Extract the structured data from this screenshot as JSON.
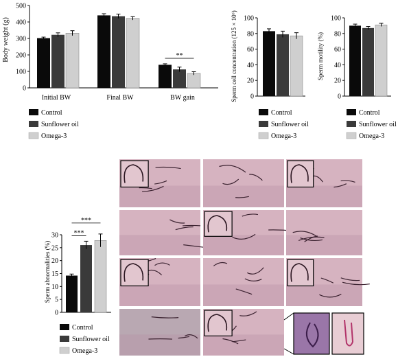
{
  "colors": {
    "control": "#0a0a0a",
    "sunflower": "#3a3a3a",
    "omega3": "#cfcfcf",
    "micrograph_bg": "#d6b3c0",
    "micrograph_dark": "#b88fa3"
  },
  "legend": [
    "Control",
    "Sunflower oil",
    "Omega-3"
  ],
  "chart_data": [
    {
      "type": "bar",
      "categories": [
        "Initial BW",
        "Final BW",
        "BW gain"
      ],
      "series": [
        {
          "name": "Control",
          "values": [
            302,
            440,
            140
          ],
          "errors": [
            6,
            10,
            6
          ]
        },
        {
          "name": "Sunflower oil",
          "values": [
            322,
            435,
            112
          ],
          "errors": [
            12,
            13,
            14
          ]
        },
        {
          "name": "Omega-3",
          "values": [
            332,
            422,
            88
          ],
          "errors": [
            15,
            10,
            10
          ]
        }
      ],
      "ylabel": "Body weight (g)",
      "ylim": [
        0,
        500
      ],
      "yticks": [
        0,
        100,
        200,
        300,
        400,
        500
      ],
      "annotations": [
        {
          "text": "**",
          "between": [
            "Control",
            "Omega-3"
          ],
          "category": "BW gain"
        }
      ]
    },
    {
      "type": "bar",
      "categories": [
        ""
      ],
      "series": [
        {
          "name": "Control",
          "values": [
            83
          ],
          "errors": [
            3
          ]
        },
        {
          "name": "Sunflower oil",
          "values": [
            79
          ],
          "errors": [
            4
          ]
        },
        {
          "name": "Omega-3",
          "values": [
            77
          ],
          "errors": [
            4
          ]
        }
      ],
      "ylabel": "Sperm cell concentration (125 × 10⁶)",
      "ylim": [
        0,
        100
      ],
      "yticks": [
        0,
        20,
        40,
        60,
        80,
        100
      ]
    },
    {
      "type": "bar",
      "categories": [
        ""
      ],
      "series": [
        {
          "name": "Control",
          "values": [
            90
          ],
          "errors": [
            2
          ]
        },
        {
          "name": "Sunflower oil",
          "values": [
            87
          ],
          "errors": [
            2
          ]
        },
        {
          "name": "Omega-3",
          "values": [
            91
          ],
          "errors": [
            2
          ]
        }
      ],
      "ylabel": "Sperm motility (%)",
      "ylim": [
        0,
        100
      ],
      "yticks": [
        0,
        20,
        40,
        60,
        80,
        100
      ]
    },
    {
      "type": "bar",
      "categories": [
        ""
      ],
      "series": [
        {
          "name": "Control",
          "values": [
            14.2
          ],
          "errors": [
            0.6
          ]
        },
        {
          "name": "Sunflower oil",
          "values": [
            26
          ],
          "errors": [
            1.5
          ]
        },
        {
          "name": "Omega-3",
          "values": [
            27.8
          ],
          "errors": [
            2.5
          ]
        }
      ],
      "ylabel": "Sperm abnormalities (%)",
      "ylim": [
        0,
        30
      ],
      "yticks": [
        0,
        5,
        10,
        15,
        20,
        25,
        30
      ],
      "annotations": [
        {
          "text": "***",
          "between": [
            "Control",
            "Sunflower oil"
          ]
        },
        {
          "text": "***",
          "between": [
            "Control",
            "Omega-3"
          ]
        }
      ]
    }
  ]
}
